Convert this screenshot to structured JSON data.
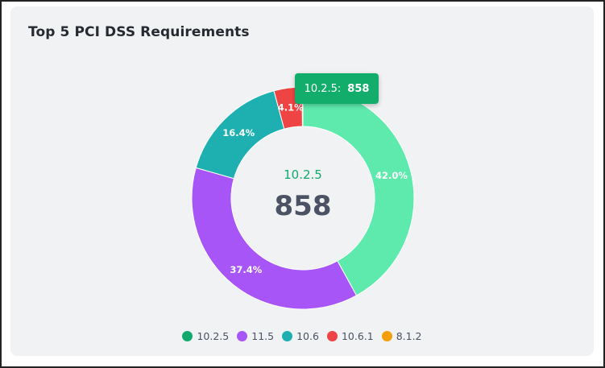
{
  "card": {
    "title": "Top 5 PCI DSS Requirements"
  },
  "center": {
    "label": "10.2.5",
    "value": "858"
  },
  "tooltip": {
    "label": "10.2.5:",
    "value": "858"
  },
  "chart_data": {
    "type": "pie",
    "donut": true,
    "title": "Top 5 PCI DSS Requirements",
    "series": [
      {
        "name": "10.2.5",
        "value": 42.0,
        "display": "42.0%",
        "color": "#5eeaad"
      },
      {
        "name": "11.5",
        "value": 37.4,
        "display": "37.4%",
        "color": "#a855f7"
      },
      {
        "name": "10.6",
        "value": 16.4,
        "display": "16.4%",
        "color": "#1eb0b0"
      },
      {
        "name": "10.6.1",
        "value": 4.1,
        "display": "4.1%",
        "color": "#ef4444"
      },
      {
        "name": "8.1.2",
        "value": 0.1,
        "display": "",
        "color": "#f59e0b"
      }
    ],
    "legend": [
      {
        "label": "10.2.5",
        "color": "#13a96d"
      },
      {
        "label": "11.5",
        "color": "#a855f7"
      },
      {
        "label": "10.6",
        "color": "#1eb0b0"
      },
      {
        "label": "10.6.1",
        "color": "#ef4444"
      },
      {
        "label": "8.1.2",
        "color": "#f59e0b"
      }
    ],
    "legend_position": "bottom"
  }
}
